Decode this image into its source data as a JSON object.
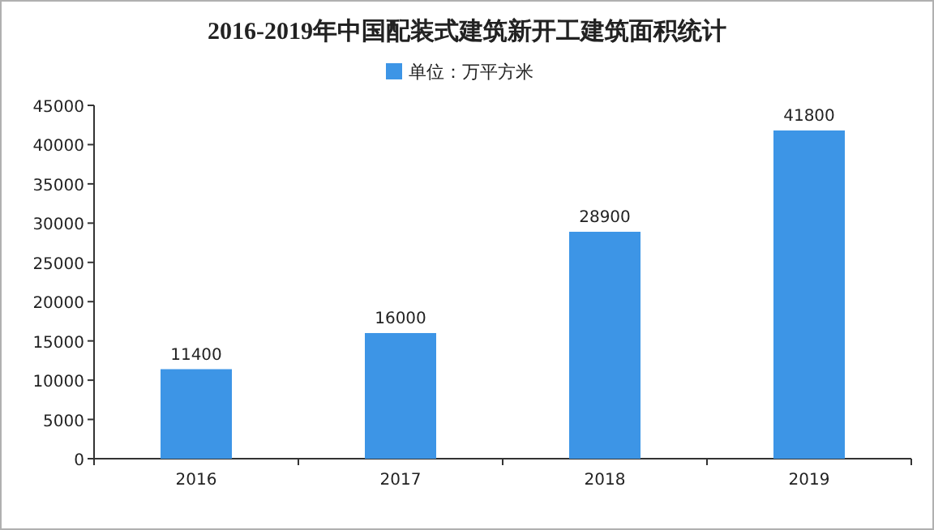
{
  "chart_data": {
    "type": "bar",
    "title": "2016-2019年中国配装式建筑新开工建筑面积统计",
    "categories": [
      "2016",
      "2017",
      "2018",
      "2019"
    ],
    "series": [
      {
        "name": "单位：万平方米",
        "color": "#3d95e6",
        "values": [
          11400,
          16000,
          28900,
          41800
        ]
      }
    ],
    "ylim": [
      0,
      45000
    ],
    "yticks": [
      0,
      5000,
      10000,
      15000,
      20000,
      25000,
      30000,
      35000,
      40000,
      45000
    ],
    "data_labels": true,
    "legend": "top",
    "grid": false
  }
}
